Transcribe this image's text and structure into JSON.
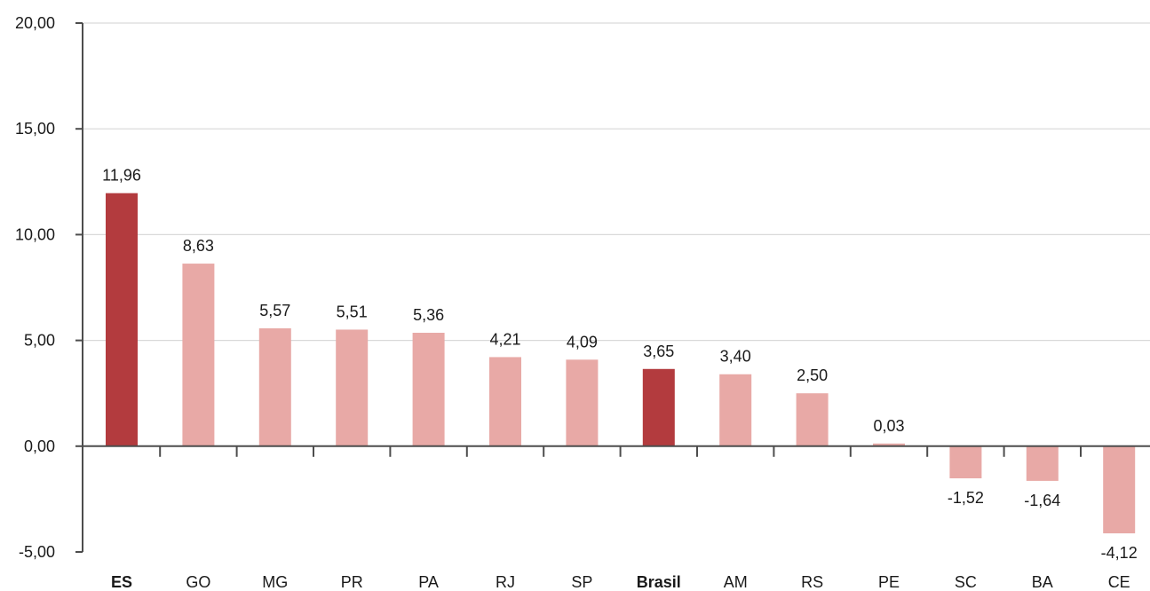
{
  "chart_data": {
    "type": "bar",
    "categories": [
      "ES",
      "GO",
      "MG",
      "PR",
      "PA",
      "RJ",
      "SP",
      "Brasil",
      "AM",
      "RS",
      "PE",
      "SC",
      "BA",
      "CE"
    ],
    "values": [
      11.96,
      8.63,
      5.57,
      5.51,
      5.36,
      4.21,
      4.09,
      3.65,
      3.4,
      2.5,
      0.03,
      -1.52,
      -1.64,
      -4.12
    ],
    "value_labels": [
      "11,96",
      "8,63",
      "5,57",
      "5,51",
      "5,36",
      "4,21",
      "4,09",
      "3,65",
      "3,40",
      "2,50",
      "0,03",
      "-1,52",
      "-1,64",
      "-4,12"
    ],
    "highlighted_categories": [
      "ES",
      "Brasil"
    ],
    "bold_categories": [
      "ES",
      "Brasil"
    ],
    "ylim": [
      -5,
      20
    ],
    "yticks": [
      -5,
      0,
      5,
      10,
      15,
      20
    ],
    "ytick_labels": [
      "-5,00",
      "0,00",
      "5,00",
      "10,00",
      "15,00",
      "20,00"
    ],
    "grid": true,
    "legend": "none",
    "title": "",
    "xlabel": "",
    "ylabel": "",
    "colors": {
      "highlight": "#b33b3e",
      "normal": "#e8a9a6",
      "grid": "#d9d9d9",
      "axis": "#4d4d4d",
      "text": "#1a1a1a"
    }
  }
}
